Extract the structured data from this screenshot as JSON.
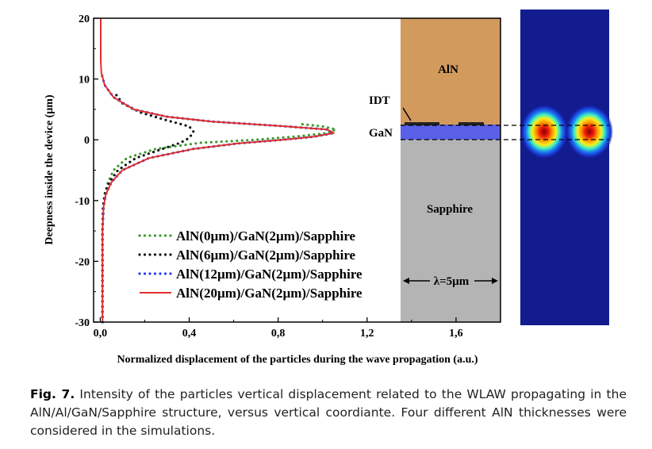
{
  "chart_data": {
    "type": "line",
    "xlabel": "Normalized displacement of the particles during the wave propagation (a.u.)",
    "ylabel": "Deepness inside the device (µm)",
    "xlim": [
      -0.03,
      1.8
    ],
    "ylim": [
      -30,
      20
    ],
    "xticks": [
      "0,0",
      "0,4",
      "0,8",
      "1,2",
      "1,6"
    ],
    "xtick_values": [
      0,
      0.4,
      0.8,
      1.2,
      1.6
    ],
    "yticks": [
      "20",
      "10",
      "0",
      "-10",
      "-20",
      "-30"
    ],
    "ytick_values": [
      20,
      10,
      0,
      -10,
      -20,
      -30
    ],
    "legend_position": "lower-left",
    "series": [
      {
        "name": "AlN(0µm)/GaN(2µm)/Sapphire",
        "color": "#3c9a2e",
        "style": "dotted",
        "points": [
          [
            0.01,
            -30
          ],
          [
            0.01,
            -25
          ],
          [
            0.01,
            -20
          ],
          [
            0.01,
            -15
          ],
          [
            0.015,
            -11
          ],
          [
            0.02,
            -9
          ],
          [
            0.035,
            -7
          ],
          [
            0.06,
            -5
          ],
          [
            0.12,
            -3
          ],
          [
            0.25,
            -1.5
          ],
          [
            0.45,
            -0.5
          ],
          [
            0.7,
            0
          ],
          [
            0.9,
            0.6
          ],
          [
            1.02,
            1.1
          ],
          [
            1.06,
            1.7
          ],
          [
            1.0,
            2.2
          ],
          [
            0.9,
            2.6
          ]
        ]
      },
      {
        "name": "AlN(6µm)/GaN(2µm)/Sapphire",
        "color": "#111111",
        "style": "dotted",
        "points": [
          [
            0.01,
            -30
          ],
          [
            0.01,
            -25
          ],
          [
            0.01,
            -20
          ],
          [
            0.01,
            -15
          ],
          [
            0.012,
            -11
          ],
          [
            0.02,
            -9
          ],
          [
            0.04,
            -7
          ],
          [
            0.08,
            -5
          ],
          [
            0.16,
            -3
          ],
          [
            0.28,
            -1.5
          ],
          [
            0.36,
            -0.5
          ],
          [
            0.4,
            0.3
          ],
          [
            0.42,
            1.3
          ],
          [
            0.4,
            2.2
          ],
          [
            0.3,
            3.2
          ],
          [
            0.18,
            4.5
          ],
          [
            0.1,
            6
          ],
          [
            0.07,
            7.5
          ]
        ]
      },
      {
        "name": "AlN(12µm)/GaN(2µm)/Sapphire",
        "color": "#2a3cf0",
        "style": "dotted",
        "points": [
          [
            0.01,
            -30
          ],
          [
            0.01,
            -25
          ],
          [
            0.01,
            -20
          ],
          [
            0.01,
            -15
          ],
          [
            0.015,
            -11
          ],
          [
            0.025,
            -9
          ],
          [
            0.05,
            -7
          ],
          [
            0.1,
            -5
          ],
          [
            0.22,
            -3
          ],
          [
            0.42,
            -1.5
          ],
          [
            0.62,
            -0.6
          ],
          [
            0.82,
            0
          ],
          [
            0.96,
            0.5
          ],
          [
            1.05,
            1.1
          ],
          [
            1.02,
            1.7
          ],
          [
            0.8,
            2.3
          ],
          [
            0.5,
            3.0
          ],
          [
            0.3,
            3.8
          ],
          [
            0.15,
            5
          ],
          [
            0.06,
            7
          ],
          [
            0.02,
            9
          ],
          [
            0.005,
            11
          ]
        ]
      },
      {
        "name": "AlN(20µm)/GaN(2µm)/Sapphire",
        "color": "#e0302a",
        "style": "solid",
        "points": [
          [
            0.01,
            -30
          ],
          [
            0.01,
            -25
          ],
          [
            0.01,
            -20
          ],
          [
            0.01,
            -15
          ],
          [
            0.015,
            -11
          ],
          [
            0.025,
            -9
          ],
          [
            0.05,
            -7
          ],
          [
            0.1,
            -5
          ],
          [
            0.22,
            -3
          ],
          [
            0.42,
            -1.5
          ],
          [
            0.62,
            -0.6
          ],
          [
            0.82,
            0
          ],
          [
            0.96,
            0.5
          ],
          [
            1.05,
            1.1
          ],
          [
            1.02,
            1.7
          ],
          [
            0.8,
            2.3
          ],
          [
            0.5,
            3.0
          ],
          [
            0.3,
            3.8
          ],
          [
            0.15,
            5
          ],
          [
            0.06,
            7
          ],
          [
            0.02,
            9
          ],
          [
            0.005,
            11
          ],
          [
            0.002,
            13
          ],
          [
            0.002,
            16
          ],
          [
            0.002,
            20
          ]
        ]
      }
    ]
  },
  "structure": {
    "layer_labels": {
      "aln": "AlN",
      "idt": "IDT",
      "gan": "GaN",
      "sapphire": "Sapphire"
    },
    "wavelength_label": "λ=5µm",
    "colors": {
      "aln": "#d39a5e",
      "gan": "#5a60e8",
      "sapphire": "#b4b4b4"
    }
  },
  "caption": {
    "label": "Fig. 7.",
    "text": "Intensity of the particles vertical displacement related to the WLAW propagating in the AlN/Al/GaN/Sapphire structure, versus vertical coordiante. Four different AlN thicknesses were considered in the simulations."
  }
}
